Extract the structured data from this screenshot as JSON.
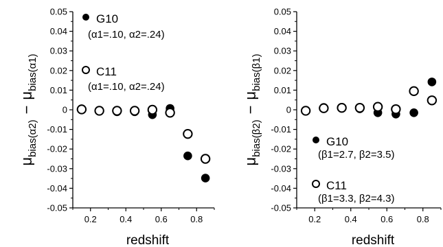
{
  "chart_data": [
    {
      "type": "scatter",
      "xlabel": "redshift",
      "ylabel": {
        "mu": "μ",
        "sub1": "bias(α2)",
        "minus": "−",
        "sub2": "bias(α1)"
      },
      "xlim": [
        0.1,
        0.9
      ],
      "ylim": [
        -0.05,
        0.05
      ],
      "xticks": [
        "0.2",
        "0.4",
        "0.6",
        "0.8"
      ],
      "xtick_values": [
        0.2,
        0.4,
        0.6,
        0.8
      ],
      "yticks": [
        "0.05",
        "0.04",
        "0.03",
        "0.02",
        "0.01",
        "0",
        "-0.01",
        "-0.02",
        "-0.03",
        "-0.04",
        "-0.05"
      ],
      "ytick_values": [
        0.05,
        0.04,
        0.03,
        0.02,
        0.01,
        0,
        -0.01,
        -0.02,
        -0.03,
        -0.04,
        -0.05
      ],
      "legend": [
        {
          "marker": "filled",
          "name": "G10",
          "params": "(α1=.10, α2=.24)"
        },
        {
          "marker": "open",
          "name": "C11",
          "params": "(α1=.10, α2=.24)"
        }
      ],
      "legend_placement": "top-left",
      "grid": false,
      "series": [
        {
          "marker": "filled",
          "x": [
            0.15,
            0.25,
            0.35,
            0.45,
            0.55,
            0.65,
            0.75,
            0.85
          ],
          "y": [
            0.0005,
            -0.0005,
            -0.001,
            -0.001,
            -0.0025,
            0.0007,
            -0.0235,
            -0.0348
          ]
        },
        {
          "marker": "open",
          "x": [
            0.15,
            0.25,
            0.35,
            0.45,
            0.55,
            0.65,
            0.75,
            0.85
          ],
          "y": [
            0.0002,
            -0.0005,
            -0.0005,
            -0.0005,
            0.0,
            -0.0015,
            -0.0123,
            -0.025
          ]
        }
      ]
    },
    {
      "type": "scatter",
      "xlabel": "redshift",
      "ylabel": {
        "mu": "μ",
        "sub1": "bias(β2)",
        "minus": "−",
        "sub2": "bias(β1)"
      },
      "xlim": [
        0.1,
        0.9
      ],
      "ylim": [
        -0.05,
        0.05
      ],
      "xticks": [
        "0.2",
        "0.4",
        "0.6",
        "0.8"
      ],
      "xtick_values": [
        0.2,
        0.4,
        0.6,
        0.8
      ],
      "yticks": [
        "0.05",
        "0.04",
        "0.03",
        "0.02",
        "0.01",
        "0",
        "-0.01",
        "-0.02",
        "-0.03",
        "-0.04",
        "-0.05"
      ],
      "ytick_values": [
        0.05,
        0.04,
        0.03,
        0.02,
        0.01,
        0,
        -0.01,
        -0.02,
        -0.03,
        -0.04,
        -0.05
      ],
      "legend": [
        {
          "marker": "filled",
          "name": "G10",
          "params": "(β1=2.7, β2=3.5)"
        },
        {
          "marker": "open",
          "name": "C11",
          "params": "(β1=3.3, β2=4.3)"
        }
      ],
      "legend_placement": "bottom-left",
      "grid": false,
      "series": [
        {
          "marker": "filled",
          "x": [
            0.15,
            0.25,
            0.35,
            0.45,
            0.55,
            0.65,
            0.75,
            0.85
          ],
          "y": [
            -0.0005,
            0.0012,
            0.0013,
            0.0005,
            -0.0015,
            -0.0022,
            -0.0015,
            0.0142
          ]
        },
        {
          "marker": "open",
          "x": [
            0.15,
            0.25,
            0.35,
            0.45,
            0.55,
            0.65,
            0.75,
            0.85
          ],
          "y": [
            -0.0005,
            0.0008,
            0.001,
            0.001,
            0.0015,
            0.0003,
            0.0095,
            0.0048
          ]
        }
      ]
    }
  ]
}
